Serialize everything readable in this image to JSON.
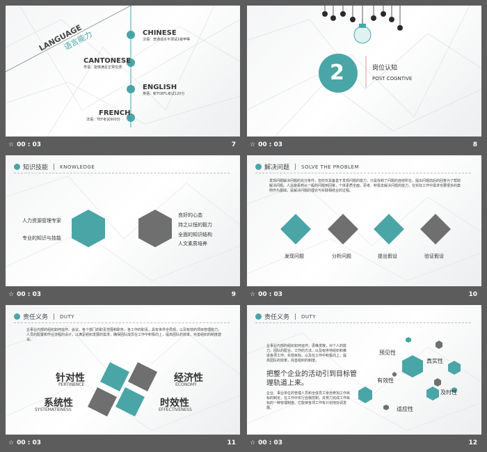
{
  "slides": [
    {
      "number": "7",
      "time": "00 : 03",
      "language_title": "LANGUAGE",
      "language_cn": "语言能力",
      "items": [
        {
          "name": "CHINESE",
          "desc": "汉语：普通话水平测试1级甲等"
        },
        {
          "name": "CANTONESE",
          "desc": "粤语：能够满足正常交流"
        },
        {
          "name": "ENGLISH",
          "desc": "英语：新TOEFL考试120分"
        },
        {
          "name": "FRENCH",
          "desc": "法语：TEF考试900分"
        }
      ]
    },
    {
      "number": "8",
      "time": "00 : 03",
      "big_number": "2",
      "title_cn": "岗位认知",
      "title_en": "POST COGNTIVE"
    },
    {
      "number": "9",
      "time": "00 : 03",
      "header_cn": "知识技能",
      "header_en": "KNOWLEDGE",
      "left_items": [
        "人力资源管理专家",
        "专业的知识与技能"
      ],
      "right_items": [
        "良好的心态",
        "持之以恒的毅力",
        "全面的知识结构",
        "人文素质培养"
      ]
    },
    {
      "number": "10",
      "time": "00 : 03",
      "header_cn": "解决问题",
      "header_en": "SOLVE THE PROBLEM",
      "paragraph": "发现问题解决问题的充分条件，但仅仅具备善于发现问题的能力，只是找到了问题的症结所在，提出问题前后的回答为了帮助解决问题。人总能看到从一般的问题到回答，个体素质全面，思考、积极去解决问题的能力，在实际工作中需求也要很多的案例作为基础，是解决问题的理论与实践相结合的过程。",
      "steps": [
        "发现问题",
        "分析问题",
        "提出假设",
        "验证假设"
      ]
    },
    {
      "number": "11",
      "time": "00 : 03",
      "header_cn": "责任义务",
      "header_en": "DUTY",
      "paragraph": "企事业内部的组织如何运作、会议、各个部门的职责范围和职务，各工作的职责，具有世界全局观，以及有效的项目管理能力，人员的配置和作业流程的设计，以满足组织发展的需求，确保团队成员在工作中积极向上，提高团队的效率，完善组织的制度建设。",
      "q1_cn": "针对性",
      "q1_en": "PERTINENCE",
      "q2_cn": "经济性",
      "q2_en": "ECONOMY",
      "q3_cn": "系统性",
      "q3_en": "SYSTEMATIENESS",
      "q4_cn": "时效性",
      "q4_en": "EFFECTIVENESS"
    },
    {
      "number": "12",
      "time": "00 : 03",
      "header_cn": "责任义务",
      "header_en": "DUTY",
      "paragraph": "企事业内部的组织如何运作，思维发散，对个人的能力、团队的配合、工作的方法、以及有序地组织和推进各项工作，实现目标，以及在工作中积极向上，提高团队的效率，完善组织的制度。",
      "headline": "把整个企业的活动引到目标管理轨道上来。",
      "body": "企业、事业单位的管理人员和全体员工亲自参加工作目标的制定，在工作中实行自我控制，并努力完成工作目标的一种管理制度。它能使各项工作有计划地协调发展。",
      "hex_labels": [
        "预见性",
        "真实性",
        "有效性",
        "及时性",
        "适应性"
      ]
    }
  ],
  "colors": {
    "accent": "#4aa5a7",
    "gray": "#7a7a7a",
    "bar": "#5c5c5c"
  },
  "icons": {
    "star": "star-icon"
  }
}
